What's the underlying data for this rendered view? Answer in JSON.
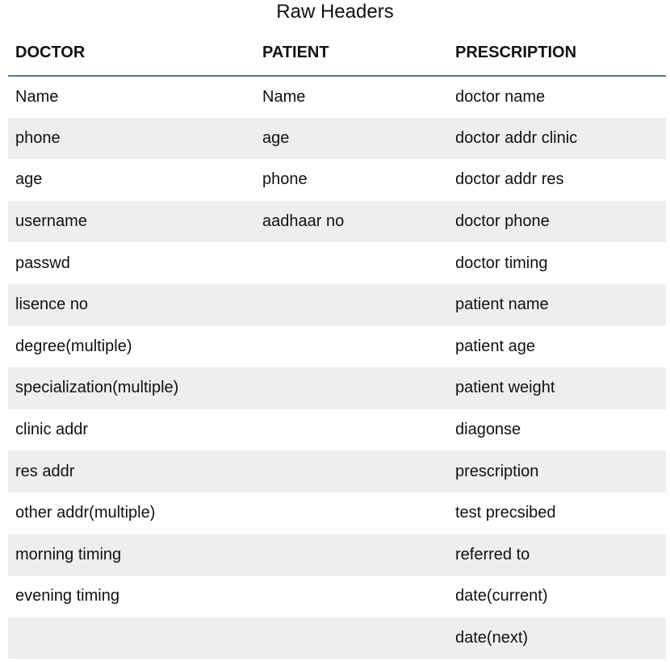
{
  "title": "Raw Headers",
  "columns": [
    "DOCTOR",
    "PATIENT",
    "PRESCRIPTION"
  ],
  "rows": [
    [
      "Name",
      "Name",
      "doctor name"
    ],
    [
      "phone",
      "age",
      "doctor addr clinic"
    ],
    [
      "age",
      "phone",
      "doctor addr res"
    ],
    [
      "username",
      "aadhaar no",
      "doctor phone"
    ],
    [
      "passwd",
      "",
      "doctor timing"
    ],
    [
      "lisence no",
      "",
      "patient name"
    ],
    [
      "degree(multiple)",
      "",
      "patient age"
    ],
    [
      "specialization(multiple)",
      "",
      "patient weight"
    ],
    [
      "clinic addr",
      "",
      "diagonse"
    ],
    [
      "res addr",
      "",
      "prescription"
    ],
    [
      "other addr(multiple)",
      "",
      "test precsibed"
    ],
    [
      "morning timing",
      "",
      "referred to"
    ],
    [
      "evening timing",
      "",
      "date(current)"
    ],
    [
      "",
      "",
      "date(next)"
    ]
  ]
}
